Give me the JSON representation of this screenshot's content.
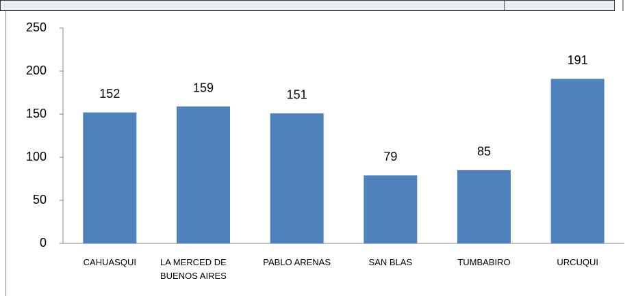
{
  "chart_data": {
    "type": "bar",
    "categories": [
      "CAHUASQUI",
      "LA MERCED DE BUENOS AIRES",
      "PABLO ARENAS",
      "SAN BLAS",
      "TUMBABIRO",
      "URCUQUI"
    ],
    "values": [
      152,
      159,
      151,
      79,
      85,
      191
    ],
    "color": "#4f81bd",
    "ylim": [
      0,
      250
    ],
    "yticks": [
      0,
      50,
      100,
      150,
      200,
      250
    ],
    "grid": false
  }
}
